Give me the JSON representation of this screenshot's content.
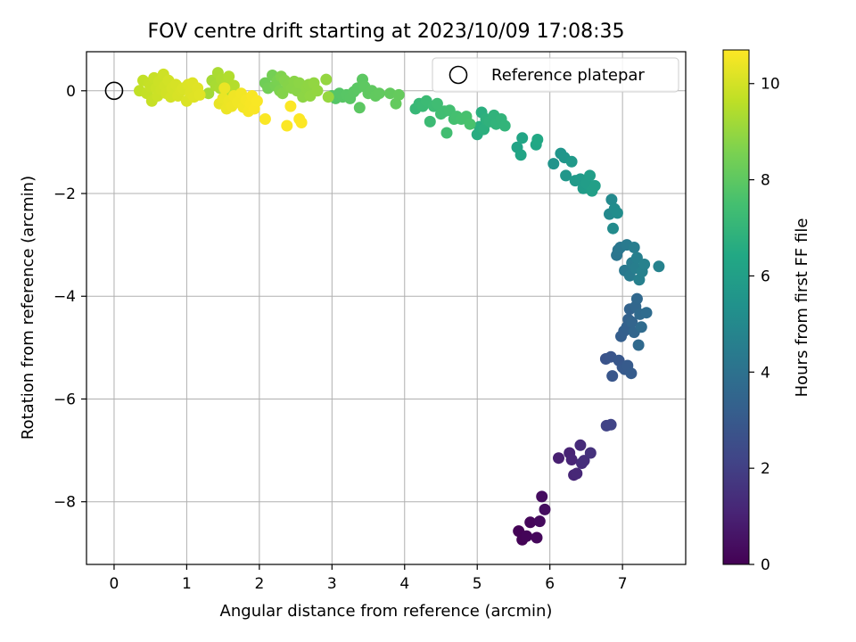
{
  "chart_data": {
    "type": "scatter",
    "title": "FOV centre drift starting at 2023/10/09 17:08:35",
    "xlabel": "Angular distance from reference (arcmin)",
    "ylabel": "Rotation from reference (arcmin)",
    "xlim": [
      -0.38,
      7.87
    ],
    "ylim": [
      -9.22,
      0.76
    ],
    "x_ticks": [
      0,
      1,
      2,
      3,
      4,
      5,
      6,
      7
    ],
    "y_ticks": [
      0,
      -2,
      -4,
      -6,
      -8
    ],
    "x_tick_labels": [
      "0",
      "1",
      "2",
      "3",
      "4",
      "5",
      "6",
      "7"
    ],
    "y_tick_labels": [
      "0",
      "−2",
      "−4",
      "−6",
      "−8"
    ],
    "grid": true,
    "legend": {
      "position": "top-right",
      "entries": [
        "Reference platepar"
      ]
    },
    "reference_point": {
      "x": 0,
      "y": 0
    },
    "colorbar": {
      "label": "Hours from first FF file",
      "range": [
        0,
        10.7
      ],
      "ticks": [
        0,
        2,
        4,
        6,
        8,
        10
      ],
      "tick_labels": [
        "0",
        "2",
        "4",
        "6",
        "8",
        "10"
      ],
      "colormap": "viridis"
    },
    "series": [
      {
        "points": [
          [
            5.57,
            -8.57,
            0.05
          ],
          [
            5.62,
            -8.74,
            0.08
          ],
          [
            5.68,
            -8.67,
            0.12
          ],
          [
            5.73,
            -8.4,
            0.18
          ],
          [
            5.82,
            -8.7,
            0.22
          ],
          [
            5.86,
            -8.38,
            0.28
          ],
          [
            5.89,
            -7.9,
            0.35
          ],
          [
            5.93,
            -8.15,
            0.4
          ],
          [
            6.12,
            -7.15,
            0.95
          ],
          [
            6.27,
            -7.05,
            1.05
          ],
          [
            6.3,
            -7.18,
            1.1
          ],
          [
            6.33,
            -7.48,
            1.15
          ],
          [
            6.37,
            -7.45,
            1.2
          ],
          [
            6.42,
            -6.9,
            1.3
          ],
          [
            6.44,
            -7.25,
            1.35
          ],
          [
            6.47,
            -7.2,
            1.4
          ],
          [
            6.56,
            -7.05,
            1.5
          ],
          [
            6.78,
            -6.52,
            2.1
          ],
          [
            6.84,
            -6.5,
            2.15
          ],
          [
            6.77,
            -5.22,
            2.75
          ],
          [
            6.84,
            -5.18,
            2.8
          ],
          [
            6.86,
            -5.55,
            2.85
          ],
          [
            6.95,
            -5.25,
            2.9
          ],
          [
            7.0,
            -5.38,
            2.95
          ],
          [
            7.03,
            -5.42,
            3.0
          ],
          [
            7.07,
            -5.35,
            3.05
          ],
          [
            7.12,
            -5.5,
            3.1
          ],
          [
            6.98,
            -4.78,
            3.2
          ],
          [
            7.02,
            -4.68,
            3.25
          ],
          [
            7.06,
            -4.6,
            3.3
          ],
          [
            7.08,
            -4.45,
            3.35
          ],
          [
            7.1,
            -4.25,
            3.4
          ],
          [
            7.13,
            -4.5,
            3.45
          ],
          [
            7.16,
            -4.7,
            3.5
          ],
          [
            7.18,
            -4.2,
            3.55
          ],
          [
            7.2,
            -4.05,
            3.6
          ],
          [
            7.22,
            -4.95,
            3.65
          ],
          [
            7.24,
            -4.35,
            3.7
          ],
          [
            7.26,
            -4.6,
            3.72
          ],
          [
            7.33,
            -4.32,
            3.75
          ],
          [
            6.92,
            -3.2,
            4.15
          ],
          [
            6.94,
            -3.1,
            4.2
          ],
          [
            6.97,
            -3.05,
            4.25
          ],
          [
            7.03,
            -3.5,
            4.3
          ],
          [
            7.06,
            -3.0,
            4.35
          ],
          [
            7.1,
            -3.6,
            4.4
          ],
          [
            7.13,
            -3.35,
            4.45
          ],
          [
            7.16,
            -3.05,
            4.5
          ],
          [
            7.18,
            -3.45,
            4.55
          ],
          [
            7.2,
            -3.25,
            4.6
          ],
          [
            7.23,
            -3.68,
            4.62
          ],
          [
            7.27,
            -3.52,
            4.65
          ],
          [
            7.3,
            -3.38,
            4.68
          ],
          [
            7.5,
            -3.42,
            4.7
          ],
          [
            6.82,
            -2.4,
            5.0
          ],
          [
            6.85,
            -2.12,
            5.05
          ],
          [
            6.87,
            -2.68,
            5.1
          ],
          [
            6.89,
            -2.3,
            5.15
          ],
          [
            6.93,
            -2.38,
            5.2
          ],
          [
            6.05,
            -1.42,
            5.5
          ],
          [
            6.15,
            -1.22,
            5.55
          ],
          [
            6.2,
            -1.3,
            5.6
          ],
          [
            6.22,
            -1.65,
            5.65
          ],
          [
            6.3,
            -1.38,
            5.7
          ],
          [
            6.35,
            -1.75,
            5.75
          ],
          [
            6.42,
            -1.72,
            5.8
          ],
          [
            6.46,
            -1.9,
            5.85
          ],
          [
            6.5,
            -1.8,
            5.9
          ],
          [
            6.55,
            -1.65,
            5.95
          ],
          [
            6.58,
            -1.95,
            6.0
          ],
          [
            6.62,
            -1.85,
            6.02
          ],
          [
            5.55,
            -1.1,
            6.2
          ],
          [
            5.6,
            -1.25,
            6.25
          ],
          [
            5.62,
            -0.92,
            6.3
          ],
          [
            5.81,
            -1.05,
            6.35
          ],
          [
            5.83,
            -0.95,
            6.4
          ],
          [
            5.0,
            -0.85,
            6.6
          ],
          [
            5.03,
            -0.7,
            6.65
          ],
          [
            5.06,
            -0.42,
            6.7
          ],
          [
            5.09,
            -0.75,
            6.75
          ],
          [
            5.12,
            -0.55,
            6.8
          ],
          [
            5.17,
            -0.6,
            6.85
          ],
          [
            5.23,
            -0.48,
            6.9
          ],
          [
            5.26,
            -0.65,
            6.92
          ],
          [
            5.33,
            -0.55,
            6.95
          ],
          [
            5.38,
            -0.68,
            6.97
          ],
          [
            4.15,
            -0.35,
            7.1
          ],
          [
            4.2,
            -0.25,
            7.15
          ],
          [
            4.25,
            -0.3,
            7.2
          ],
          [
            4.3,
            -0.2,
            7.25
          ],
          [
            4.35,
            -0.6,
            7.28
          ],
          [
            4.4,
            -0.3,
            7.3
          ],
          [
            4.45,
            -0.25,
            7.35
          ],
          [
            4.5,
            -0.45,
            7.38
          ],
          [
            4.55,
            -0.4,
            7.4
          ],
          [
            4.58,
            -0.82,
            7.42
          ],
          [
            4.62,
            -0.38,
            7.45
          ],
          [
            4.68,
            -0.55,
            7.48
          ],
          [
            4.72,
            -0.5,
            7.5
          ],
          [
            4.78,
            -0.55,
            7.52
          ],
          [
            4.85,
            -0.5,
            7.55
          ],
          [
            4.9,
            -0.65,
            7.58
          ],
          [
            3.0,
            -0.1,
            7.8
          ],
          [
            3.05,
            -0.15,
            7.82
          ],
          [
            3.1,
            -0.05,
            7.84
          ],
          [
            3.15,
            -0.12,
            7.86
          ],
          [
            3.2,
            -0.08,
            7.88
          ],
          [
            3.25,
            -0.15,
            7.9
          ],
          [
            3.3,
            -0.02,
            7.92
          ],
          [
            3.35,
            0.05,
            7.94
          ],
          [
            3.38,
            -0.33,
            7.96
          ],
          [
            3.42,
            0.22,
            7.98
          ],
          [
            3.45,
            0.08,
            8.0
          ],
          [
            3.5,
            -0.05,
            8.02
          ],
          [
            3.55,
            0.0,
            8.04
          ],
          [
            3.6,
            -0.1,
            8.06
          ],
          [
            3.65,
            -0.05,
            8.08
          ],
          [
            3.8,
            -0.05,
            8.1
          ],
          [
            3.88,
            -0.25,
            8.12
          ],
          [
            3.92,
            -0.08,
            8.14
          ],
          [
            2.08,
            0.15,
            8.35
          ],
          [
            2.12,
            0.05,
            8.4
          ],
          [
            2.18,
            0.3,
            8.45
          ],
          [
            2.22,
            0.1,
            8.5
          ],
          [
            2.25,
            0.2,
            8.55
          ],
          [
            2.28,
            0.0,
            8.6
          ],
          [
            2.3,
            0.28,
            8.65
          ],
          [
            2.32,
            -0.05,
            8.7
          ],
          [
            2.35,
            0.2,
            8.72
          ],
          [
            2.4,
            0.1,
            8.75
          ],
          [
            2.45,
            0.05,
            8.78
          ],
          [
            2.48,
            0.18,
            8.8
          ],
          [
            2.52,
            0.0,
            8.82
          ],
          [
            2.55,
            0.15,
            8.84
          ],
          [
            2.6,
            -0.12,
            8.86
          ],
          [
            2.65,
            0.05,
            8.88
          ],
          [
            2.68,
            0.12,
            8.9
          ],
          [
            2.7,
            -0.1,
            8.92
          ],
          [
            2.75,
            0.15,
            8.94
          ],
          [
            2.8,
            0.0,
            8.96
          ],
          [
            2.92,
            0.22,
            8.98
          ],
          [
            2.95,
            -0.12,
            9.0
          ],
          [
            1.3,
            -0.05,
            9.2
          ],
          [
            1.35,
            0.2,
            9.25
          ],
          [
            1.4,
            0.1,
            9.3
          ],
          [
            1.43,
            0.35,
            9.32
          ],
          [
            1.46,
            0.05,
            9.35
          ],
          [
            1.48,
            0.22,
            9.38
          ],
          [
            1.52,
            0.0,
            9.4
          ],
          [
            1.55,
            0.15,
            9.42
          ],
          [
            1.58,
            0.28,
            9.44
          ],
          [
            1.62,
            -0.05,
            9.46
          ],
          [
            1.65,
            0.1,
            9.48
          ],
          [
            0.35,
            0.0,
            9.7
          ],
          [
            0.4,
            0.2,
            9.72
          ],
          [
            0.45,
            -0.05,
            9.74
          ],
          [
            0.48,
            0.15,
            9.76
          ],
          [
            0.5,
            0.08,
            9.78
          ],
          [
            0.52,
            -0.2,
            9.8
          ],
          [
            0.55,
            0.25,
            9.82
          ],
          [
            0.58,
            0.05,
            9.84
          ],
          [
            0.6,
            -0.1,
            9.86
          ],
          [
            0.62,
            0.18,
            9.88
          ],
          [
            0.65,
            0.02,
            9.9
          ],
          [
            0.68,
            0.32,
            9.92
          ],
          [
            0.7,
            0.1,
            9.94
          ],
          [
            0.72,
            -0.05,
            9.96
          ],
          [
            0.75,
            0.2,
            9.98
          ],
          [
            0.78,
            -0.12,
            10.0
          ],
          [
            0.8,
            0.05,
            10.02
          ],
          [
            0.85,
            0.12,
            10.04
          ],
          [
            0.88,
            -0.1,
            10.06
          ],
          [
            0.92,
            0.0,
            10.08
          ],
          [
            0.95,
            0.05,
            10.1
          ],
          [
            1.0,
            -0.2,
            10.12
          ],
          [
            1.02,
            0.12,
            10.14
          ],
          [
            1.05,
            -0.05,
            10.16
          ],
          [
            1.08,
            0.15,
            10.18
          ],
          [
            1.1,
            -0.12,
            10.2
          ],
          [
            1.15,
            0.05,
            10.22
          ],
          [
            1.18,
            -0.08,
            10.24
          ],
          [
            1.45,
            -0.25,
            10.35
          ],
          [
            1.5,
            -0.15,
            10.38
          ],
          [
            1.52,
            0.05,
            10.4
          ],
          [
            1.55,
            -0.35,
            10.42
          ],
          [
            1.58,
            -0.2,
            10.44
          ],
          [
            1.62,
            -0.3,
            10.46
          ],
          [
            1.65,
            -0.1,
            10.48
          ],
          [
            1.7,
            -0.22,
            10.5
          ],
          [
            1.75,
            -0.05,
            10.52
          ],
          [
            1.78,
            -0.32,
            10.54
          ],
          [
            1.82,
            -0.18,
            10.56
          ],
          [
            1.85,
            -0.4,
            10.58
          ],
          [
            1.88,
            -0.25,
            10.6
          ],
          [
            1.9,
            -0.1,
            10.62
          ],
          [
            1.93,
            -0.35,
            10.63
          ],
          [
            1.97,
            -0.2,
            10.64
          ],
          [
            2.08,
            -0.55,
            10.65
          ],
          [
            2.38,
            -0.68,
            10.66
          ],
          [
            2.43,
            -0.3,
            10.67
          ],
          [
            2.55,
            -0.55,
            10.68
          ],
          [
            2.58,
            -0.62,
            10.69
          ]
        ]
      }
    ]
  }
}
